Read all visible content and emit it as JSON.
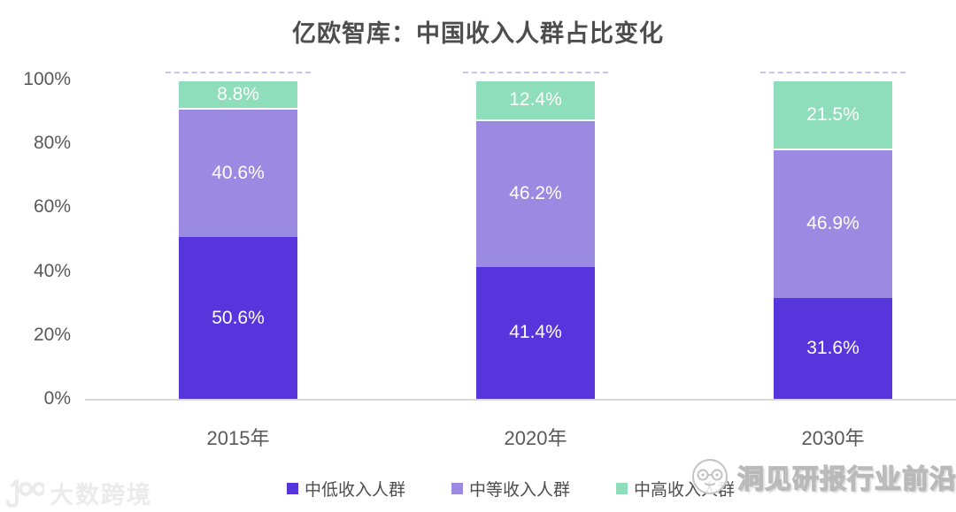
{
  "title": "亿欧智库：中国收入人群占比变化",
  "chart_data": {
    "type": "bar",
    "stacked": true,
    "title": "亿欧智库：中国收入人群占比变化",
    "categories": [
      "2015年",
      "2020年",
      "2030年"
    ],
    "series": [
      {
        "name": "中低收入人群",
        "color": "#5635DD",
        "values": [
          50.6,
          41.4,
          31.6
        ]
      },
      {
        "name": "中等收入人群",
        "color": "#9A8AE2",
        "values": [
          40.6,
          46.2,
          46.9
        ]
      },
      {
        "name": "中高收入人群",
        "color": "#8EDDBB",
        "values": [
          8.8,
          12.4,
          21.5
        ]
      }
    ],
    "yticks": [
      "0%",
      "20%",
      "40%",
      "60%",
      "80%",
      "100%"
    ],
    "ylim": [
      0,
      100
    ],
    "value_suffix": "%",
    "grid": false,
    "legend_position": "bottom",
    "bar_label_color": "#ffffff",
    "axis_color": "#d9d9d9",
    "text_color": "#595959"
  },
  "watermarks": {
    "left_text": "大数跨境",
    "left_logo": "100-logo",
    "right_text": "洞见研报行业前沿",
    "right_logo": "face-glasses-logo"
  }
}
